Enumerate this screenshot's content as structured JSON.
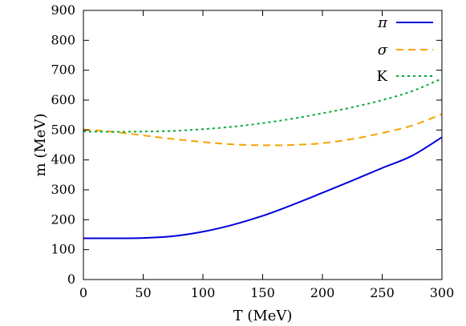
{
  "chart_data": {
    "type": "line",
    "title": "",
    "xlabel": "T (MeV)",
    "ylabel": "m (MeV)",
    "xlim": [
      0,
      300
    ],
    "ylim": [
      0,
      900
    ],
    "xticks": [
      0,
      50,
      100,
      150,
      200,
      250,
      300
    ],
    "yticks": [
      0,
      100,
      200,
      300,
      400,
      500,
      600,
      700,
      800,
      900
    ],
    "grid": false,
    "legend_position": "top-right",
    "series": [
      {
        "name": "π",
        "color": "#0000dd",
        "style": "solid",
        "x": [
          0,
          25,
          50,
          75,
          100,
          125,
          150,
          175,
          200,
          225,
          250,
          275,
          300
        ],
        "y": [
          138,
          138,
          139,
          145,
          160,
          183,
          213,
          250,
          290,
          331,
          373,
          414,
          476
        ]
      },
      {
        "name": "σ",
        "color": "#f5a300",
        "style": "dashed",
        "x": [
          0,
          25,
          50,
          75,
          100,
          125,
          150,
          175,
          200,
          225,
          250,
          275,
          300
        ],
        "y": [
          502,
          494,
          482,
          470,
          460,
          452,
          449,
          450,
          456,
          470,
          490,
          515,
          553
        ]
      },
      {
        "name": "K",
        "color": "#00aa33",
        "style": "dotted",
        "x": [
          0,
          25,
          50,
          75,
          100,
          125,
          150,
          175,
          200,
          225,
          250,
          275,
          300
        ],
        "y": [
          495,
          494,
          495,
          497,
          503,
          511,
          523,
          538,
          556,
          576,
          600,
          630,
          672
        ]
      }
    ]
  }
}
